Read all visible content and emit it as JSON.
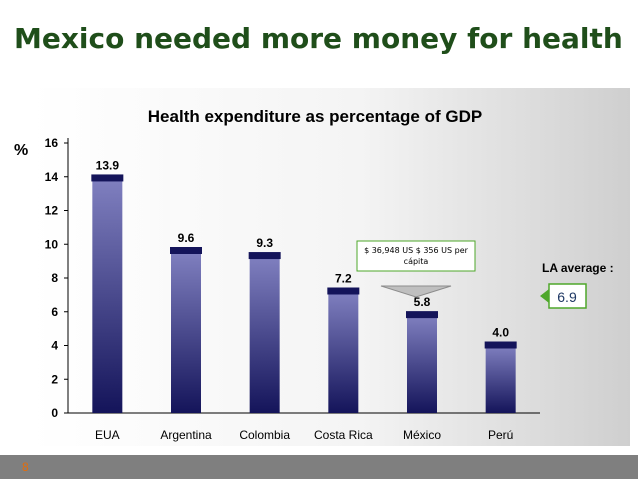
{
  "slide": {
    "title": "Mexico needed more money for health",
    "page_number": "8"
  },
  "chart_data": {
    "type": "bar",
    "title": "Health expenditure as percentage of GDP",
    "ylabel": "%",
    "xlabel": "",
    "categories": [
      "EUA",
      "Argentina",
      "Colombia",
      "Costa Rica",
      "México",
      "Perú"
    ],
    "values": [
      13.9,
      9.6,
      9.3,
      7.2,
      5.8,
      4.0
    ],
    "value_labels": [
      "13.9",
      "9.6",
      "9.3",
      "7.2",
      "5.8",
      "4.0"
    ],
    "ylim": [
      0,
      16
    ],
    "yticks": [
      0,
      2,
      4,
      6,
      8,
      10,
      12,
      14,
      16
    ],
    "grid": false,
    "colors": {
      "bar_top": "#8080c0",
      "bar_bottom": "#14145a",
      "bar_cap": "#14145a",
      "callout_border": "#4ea72a",
      "callout_arrow": "#a6a6a6"
    },
    "annotations": {
      "callout": {
        "line1": "$ 36,948  US $ 356 US per",
        "line2": "cápita"
      },
      "la_average_label": "LA average :",
      "la_average_value": "6.9"
    }
  }
}
